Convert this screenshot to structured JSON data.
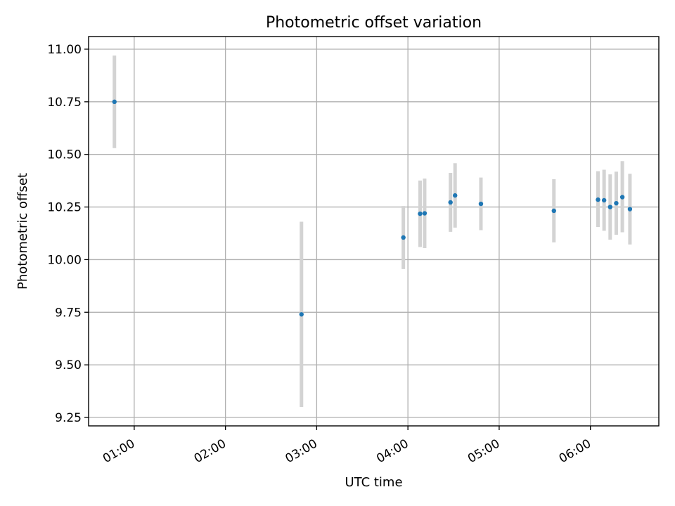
{
  "chart_data": {
    "type": "scatter",
    "title": "Photometric offset variation",
    "xlabel": "UTC time",
    "ylabel": "Photometric offset",
    "xlim": [
      "00:30",
      "06:45"
    ],
    "ylim": [
      9.21,
      11.06
    ],
    "grid": true,
    "x_ticks": [
      "01:00",
      "02:00",
      "03:00",
      "04:00",
      "05:00",
      "06:00"
    ],
    "y_ticks": [
      "9.25",
      "9.50",
      "9.75",
      "10.00",
      "10.25",
      "10.50",
      "10.75",
      "11.00"
    ],
    "colors": {
      "points": "#1f77b4",
      "errorbars": "#d3d3d3",
      "grid": "#b0b0b0"
    },
    "points": [
      {
        "x": "00:47",
        "y": 10.75,
        "ylo": 10.53,
        "yhi": 10.97
      },
      {
        "x": "02:50",
        "y": 9.74,
        "ylo": 9.3,
        "yhi": 10.18
      },
      {
        "x": "03:57",
        "y": 10.105,
        "ylo": 9.955,
        "yhi": 10.255
      },
      {
        "x": "04:08",
        "y": 10.218,
        "ylo": 10.06,
        "yhi": 10.376
      },
      {
        "x": "04:11",
        "y": 10.22,
        "ylo": 10.055,
        "yhi": 10.385
      },
      {
        "x": "04:28",
        "y": 10.272,
        "ylo": 10.132,
        "yhi": 10.412
      },
      {
        "x": "04:31",
        "y": 10.305,
        "ylo": 10.152,
        "yhi": 10.458
      },
      {
        "x": "04:48",
        "y": 10.265,
        "ylo": 10.14,
        "yhi": 10.39
      },
      {
        "x": "05:36",
        "y": 10.232,
        "ylo": 10.082,
        "yhi": 10.382
      },
      {
        "x": "06:05",
        "y": 10.285,
        "ylo": 10.155,
        "yhi": 10.42
      },
      {
        "x": "06:09",
        "y": 10.282,
        "ylo": 10.137,
        "yhi": 10.427
      },
      {
        "x": "06:13",
        "y": 10.25,
        "ylo": 10.095,
        "yhi": 10.405
      },
      {
        "x": "06:17",
        "y": 10.268,
        "ylo": 10.118,
        "yhi": 10.418
      },
      {
        "x": "06:21",
        "y": 10.297,
        "ylo": 10.13,
        "yhi": 10.468
      },
      {
        "x": "06:26",
        "y": 10.24,
        "ylo": 10.072,
        "yhi": 10.408
      }
    ]
  }
}
